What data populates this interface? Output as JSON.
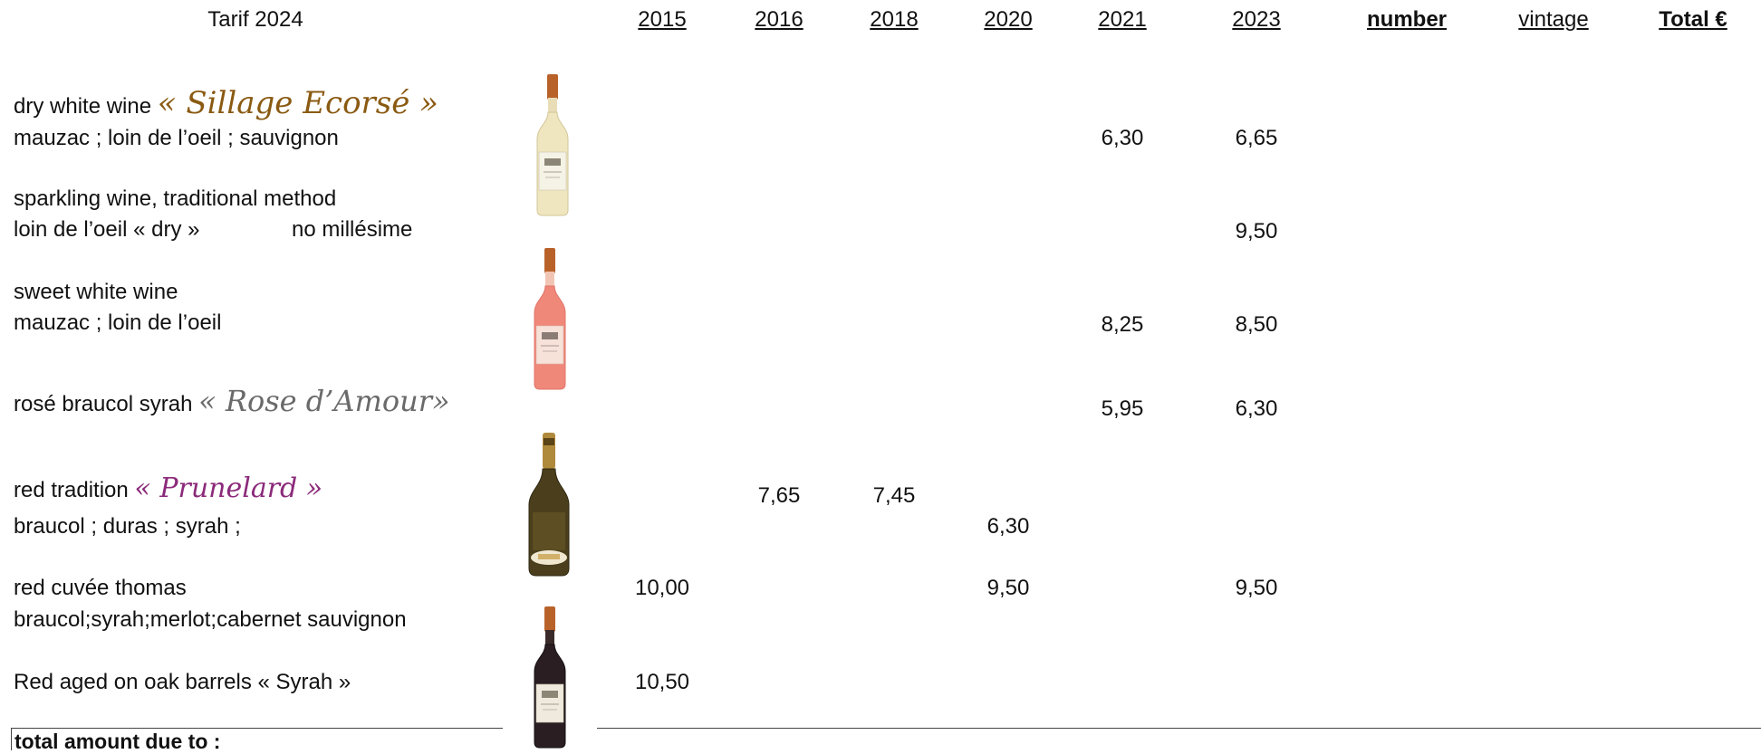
{
  "title": "Tarif 2024",
  "columns": {
    "y2015": "2015",
    "y2016": "2016",
    "y2018": "2018",
    "y2020": "2020",
    "y2021": "2021",
    "y2023": "2023",
    "number": "number",
    "vintage": "vintage",
    "total": "Total €"
  },
  "wines": {
    "w1": {
      "label": "dry white wine",
      "brand": "« Sillage Ecorsé »",
      "grapes": "mauzac ; loin de l’oeil ; sauvignon",
      "p2021": "6,30",
      "p2023": "6,65"
    },
    "w2": {
      "label": "sparkling wine, traditional method",
      "grapes": "loin de l’oeil « dry »",
      "note": "no millésime",
      "p2023": "9,50"
    },
    "w3": {
      "label": "sweet white wine",
      "grapes": "mauzac ; loin de l’oeil",
      "p2021": "8,25",
      "p2023": "8,50"
    },
    "w4": {
      "label": "rosé braucol syrah",
      "brand": "« Rose d’Amour»",
      "p2021": "5,95",
      "p2023": "6,30"
    },
    "w5": {
      "label": "red tradition",
      "brand": "« Prunelard »",
      "grapes": "braucol ; duras ; syrah ;",
      "p2016": "7,65",
      "p2018": "7,45",
      "p2020": "6,30"
    },
    "w6": {
      "label": "red cuvée thomas",
      "grapes": "braucol;syrah;merlot;cabernet sauvignon",
      "p2015": "10,00",
      "p2020": "9,50",
      "p2023": "9,50"
    },
    "w7": {
      "label": "Red aged on oak barrels « Syrah »",
      "p2015": "10,50"
    }
  },
  "footer": {
    "total_label": "total amount due to :"
  },
  "colors": {
    "brand_gold": "#8a5a12",
    "brand_grey": "#6a6a6a",
    "brand_purple": "#8b2a7a"
  },
  "icons": {
    "bottle1": "white-wine-bottle-icon",
    "bottle2": "rose-wine-bottle-icon",
    "bottle3": "sparkling-wine-bottle-icon",
    "bottle4": "red-wine-bottle-icon"
  }
}
